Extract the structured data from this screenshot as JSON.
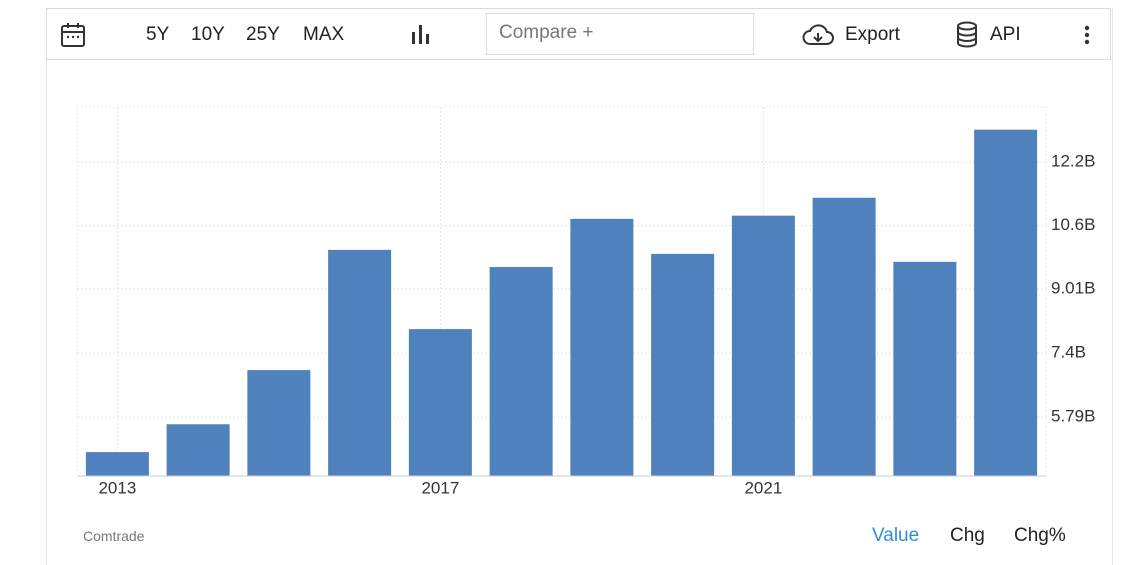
{
  "toolbar": {
    "ranges": [
      "5Y",
      "10Y",
      "25Y",
      "MAX"
    ],
    "compare": "Compare +",
    "export": "Export",
    "api": "API"
  },
  "footer": {
    "source": "Comtrade",
    "tabs": [
      "Value",
      "Chg",
      "Chg%"
    ]
  },
  "chart_data": {
    "type": "bar",
    "color": "#4f81bd",
    "categories": [
      "2013",
      null,
      null,
      null,
      "2017",
      null,
      null,
      null,
      "2021",
      null,
      null,
      null
    ],
    "values": [
      4.91,
      5.61,
      6.97,
      9.99,
      8.0,
      9.56,
      10.77,
      9.89,
      10.85,
      11.3,
      9.69,
      13.01
    ],
    "ylim": [
      4.31,
      13.58
    ],
    "yticks": [
      {
        "value": 5.79,
        "label": "5.79B"
      },
      {
        "value": 7.4,
        "label": "7.4B"
      },
      {
        "value": 9.01,
        "label": "9.01B"
      },
      {
        "value": 10.6,
        "label": "10.6B"
      },
      {
        "value": 12.2,
        "label": "12.2B"
      }
    ],
    "grid": true
  }
}
